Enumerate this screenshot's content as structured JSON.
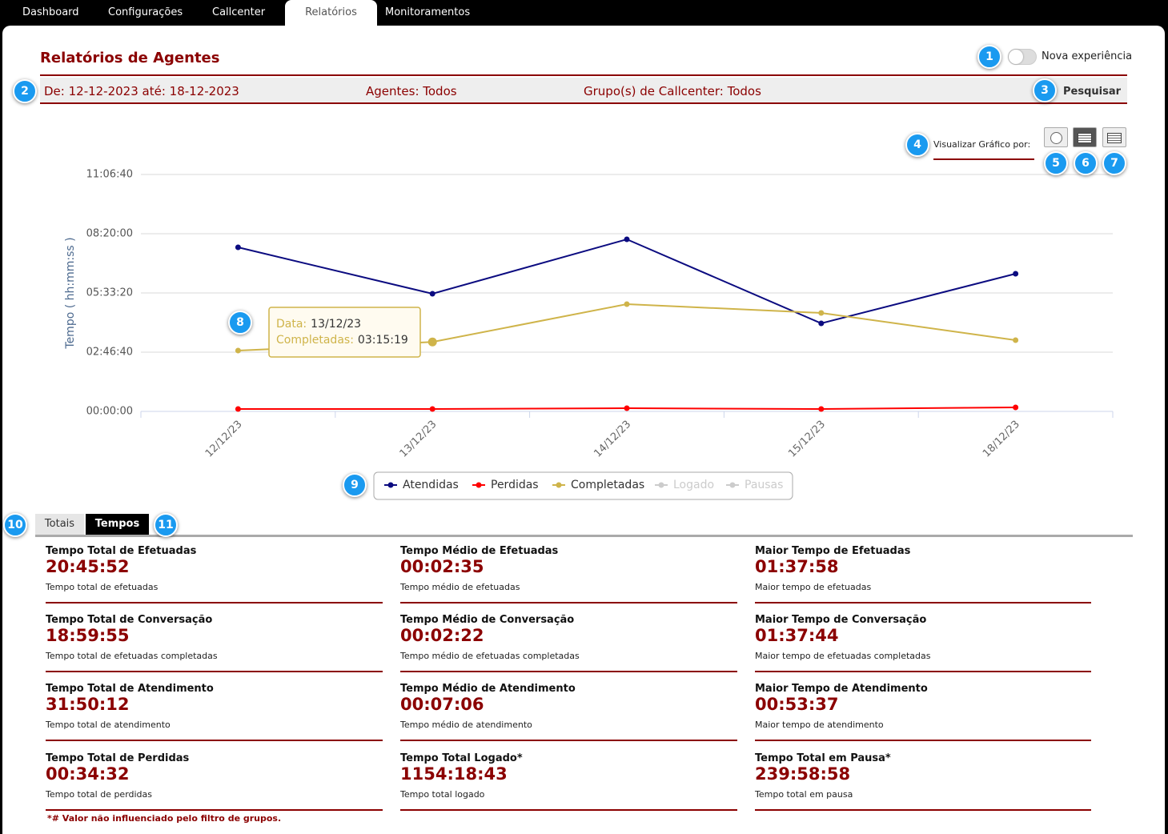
{
  "nav": {
    "items": [
      "Dashboard",
      "Configurações",
      "Callcenter",
      "Relatórios",
      "Monitoramentos"
    ],
    "active": 3
  },
  "header": {
    "title": "Relatórios de Agentes",
    "toggle_label": "Nova experiência"
  },
  "filters": {
    "period": "De: 12-12-2023 até: 18-12-2023",
    "agents": "Agentes: Todos",
    "groups": "Grupo(s) de Callcenter: Todos",
    "search": "Pesquisar"
  },
  "view": {
    "label": "Visualizar Gráfico por:",
    "active_button": 1
  },
  "callouts": [
    1,
    2,
    3,
    4,
    5,
    6,
    7,
    8,
    9,
    10,
    11
  ],
  "chart_data": {
    "type": "line",
    "y_label": "Tempo ( hh:mm:ss )",
    "categories": [
      "12/12/23",
      "13/12/23",
      "14/12/23",
      "15/12/23",
      "18/12/23"
    ],
    "ylim": [
      0,
      40000
    ],
    "yticks": [
      {
        "value": 0,
        "label": "00:00:00"
      },
      {
        "value": 10000,
        "label": "02:46:40"
      },
      {
        "value": 20000,
        "label": "05:33:20"
      },
      {
        "value": 30000,
        "label": "08:20:00"
      },
      {
        "value": 40000,
        "label": "11:06:40"
      }
    ],
    "grid": true,
    "series": [
      {
        "name": "Atendidas",
        "color": "#0b0b80",
        "values": [
          27700,
          19865,
          29054,
          14865,
          23243
        ]
      },
      {
        "name": "Perdidas",
        "color": "#ff0000",
        "values": [
          405,
          405,
          540,
          405,
          676
        ]
      },
      {
        "name": "Completadas",
        "color": "#cfb44a",
        "values": [
          10270,
          11719,
          18108,
          16622,
          12027
        ]
      },
      {
        "name": "Logado",
        "color": "#cccccc",
        "hidden": true,
        "values": [
          null,
          null,
          null,
          null,
          null
        ]
      },
      {
        "name": "Pausas",
        "color": "#cccccc",
        "hidden": true,
        "values": [
          null,
          null,
          null,
          null,
          null
        ]
      }
    ],
    "tooltip": {
      "series": 2,
      "index": 1,
      "date_label": "Data:",
      "date": "13/12/23",
      "series_label": "Completadas:",
      "value": "03:15:19"
    }
  },
  "tabs": {
    "items": [
      "Totais",
      "Tempos"
    ],
    "active": 1
  },
  "stats": [
    {
      "title": "Tempo Total de Efetuadas",
      "value": "20:45:52",
      "description": "Tempo total de efetuadas"
    },
    {
      "title": "Tempo Médio de Efetuadas",
      "value": "00:02:35",
      "description": "Tempo médio de efetuadas"
    },
    {
      "title": "Maior Tempo de Efetuadas",
      "value": "01:37:58",
      "description": "Maior tempo de efetuadas"
    },
    {
      "title": "Tempo Total de Conversação",
      "value": "18:59:55",
      "description": "Tempo total de efetuadas completadas"
    },
    {
      "title": "Tempo Médio de Conversação",
      "value": "00:02:22",
      "description": "Tempo médio de efetuadas completadas"
    },
    {
      "title": "Maior Tempo de Conversação",
      "value": "01:37:44",
      "description": "Maior tempo de efetuadas completadas"
    },
    {
      "title": "Tempo Total de Atendimento",
      "value": "31:50:12",
      "description": "Tempo total de atendimento"
    },
    {
      "title": "Tempo Médio de Atendimento",
      "value": "00:07:06",
      "description": "Tempo médio de atendimento"
    },
    {
      "title": "Maior Tempo de Atendimento",
      "value": "00:53:37",
      "description": "Maior tempo de atendimento"
    },
    {
      "title": "Tempo Total de Perdidas",
      "value": "00:34:32",
      "description": "Tempo total de perdidas"
    },
    {
      "title": "Tempo Total Logado*",
      "value": "1154:18:43",
      "description": "Tempo total logado"
    },
    {
      "title": "Tempo Total em Pausa*",
      "value": "239:58:58",
      "description": "Tempo total em pausa"
    }
  ],
  "footnote": "*# Valor não influenciado pelo filtro de grupos."
}
